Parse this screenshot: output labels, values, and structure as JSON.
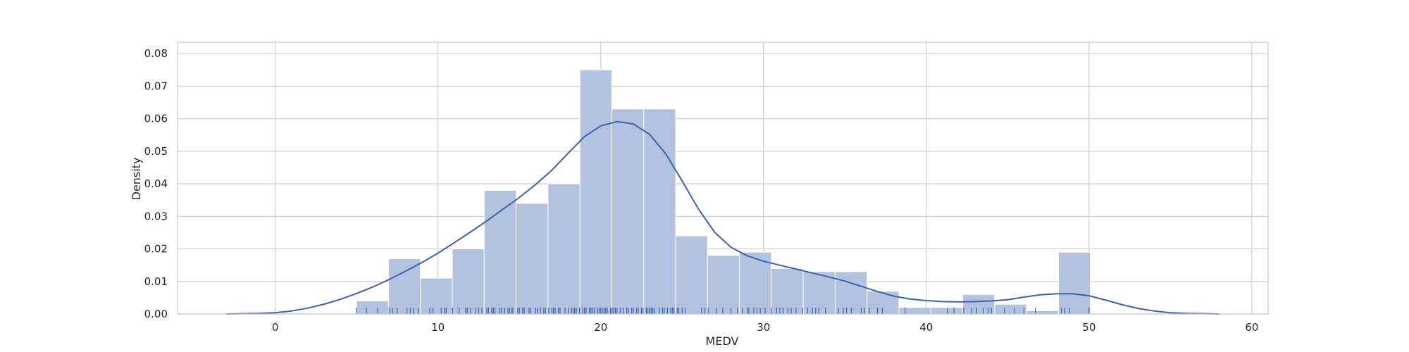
{
  "chart_data": {
    "type": "bar",
    "title": "",
    "xlabel": "MEDV",
    "ylabel": "Density",
    "xlim": [
      -6,
      61
    ],
    "ylim": [
      0,
      0.0835
    ],
    "xticks": [
      0,
      10,
      20,
      30,
      40,
      50,
      60
    ],
    "yticks": [
      0.0,
      0.01,
      0.02,
      0.03,
      0.04,
      0.05,
      0.06,
      0.07,
      0.08
    ],
    "ytick_labels": [
      "0.00",
      "0.01",
      "0.02",
      "0.03",
      "0.04",
      "0.05",
      "0.06",
      "0.07",
      "0.08"
    ],
    "grid": true,
    "colors": {
      "bar": "#b3c2de",
      "bar_edge": "#ffffff",
      "kde": "#3a63ad",
      "rug": "#3a63ad",
      "grid": "#cfcfcf",
      "frame": "#c8c8c8"
    },
    "histogram": {
      "bin_edges": [
        5,
        6.96,
        8.92,
        10.88,
        12.84,
        14.8,
        16.76,
        18.72,
        20.68,
        22.64,
        24.6,
        26.56,
        28.52,
        30.48,
        32.44,
        34.4,
        36.36,
        38.32,
        40.28,
        42.24,
        44.2,
        46.16,
        48.12,
        50.08
      ],
      "density": [
        0.004,
        0.017,
        0.011,
        0.02,
        0.038,
        0.034,
        0.04,
        0.075,
        0.063,
        0.063,
        0.024,
        0.018,
        0.019,
        0.014,
        0.013,
        0.013,
        0.007,
        0.002,
        0.002,
        0.006,
        0.003,
        0.001,
        0.019
      ]
    },
    "kde": {
      "x": [
        -3,
        -1,
        0,
        1,
        2,
        3,
        4,
        5,
        6,
        7,
        8,
        9,
        10,
        11,
        12,
        13,
        14,
        15,
        16,
        17,
        18,
        19,
        20,
        21,
        22,
        23,
        24,
        25,
        26,
        27,
        28,
        29,
        30,
        31,
        32,
        33,
        34,
        35,
        36,
        37,
        38,
        39,
        40,
        41,
        42,
        43,
        44,
        45,
        46,
        47,
        48,
        49,
        50,
        51,
        52,
        53,
        54,
        55,
        56,
        57,
        58
      ],
      "y": [
        0.0,
        0.0002,
        0.0004,
        0.0009,
        0.0018,
        0.003,
        0.0045,
        0.0063,
        0.0083,
        0.0106,
        0.0131,
        0.0158,
        0.0187,
        0.0219,
        0.0252,
        0.0286,
        0.0322,
        0.0358,
        0.0398,
        0.0442,
        0.0494,
        0.0545,
        0.0578,
        0.0591,
        0.0584,
        0.0552,
        0.0492,
        0.0409,
        0.0323,
        0.0251,
        0.0205,
        0.0179,
        0.0162,
        0.015,
        0.0138,
        0.0126,
        0.0114,
        0.0101,
        0.0085,
        0.0069,
        0.0055,
        0.0046,
        0.0041,
        0.0038,
        0.0037,
        0.0038,
        0.004,
        0.0044,
        0.0052,
        0.0059,
        0.0062,
        0.0062,
        0.0056,
        0.0043,
        0.0029,
        0.0017,
        0.0009,
        0.0004,
        0.0002,
        0.0001,
        0.0
      ]
    },
    "rug": [
      5,
      5.6,
      6.3,
      7,
      7.2,
      7.5,
      8.1,
      8.3,
      8.5,
      8.8,
      9.5,
      9.7,
      10.2,
      10.4,
      10.5,
      10.9,
      11.3,
      11.7,
      11.8,
      12,
      12.3,
      12.5,
      12.7,
      13,
      13.1,
      13.3,
      13.4,
      13.5,
      13.8,
      13.9,
      14.1,
      14.3,
      14.4,
      14.5,
      14.6,
      14.9,
      15,
      15.2,
      15.3,
      15.6,
      15.7,
      16,
      16.1,
      16.3,
      16.5,
      16.6,
      16.8,
      17,
      17.1,
      17.2,
      17.4,
      17.5,
      17.8,
      18,
      18.2,
      18.3,
      18.4,
      18.5,
      18.7,
      18.9,
      19,
      19.1,
      19.3,
      19.4,
      19.5,
      19.6,
      19.8,
      19.9,
      20,
      20.1,
      20.2,
      20.3,
      20.4,
      20.6,
      20.7,
      20.8,
      20.9,
      21,
      21.2,
      21.4,
      21.6,
      21.7,
      21.9,
      22,
      22.2,
      22.3,
      22.5,
      22.6,
      22.8,
      22.9,
      23,
      23.1,
      23.2,
      23.3,
      23.6,
      23.8,
      23.9,
      24.1,
      24.3,
      24.4,
      24.5,
      24.7,
      24.8,
      25,
      25.2,
      26.2,
      26.4,
      26.6,
      27.1,
      27.5,
      28,
      28.4,
      28.7,
      29,
      29.1,
      29.4,
      29.6,
      29.8,
      30.1,
      30.5,
      30.8,
      31,
      31.2,
      31.5,
      31.7,
      32,
      32.4,
      32.7,
      33,
      33.2,
      33.4,
      33.8,
      34.6,
      34.9,
      35.1,
      35.4,
      36,
      36.2,
      36.5,
      37,
      37.3,
      38.7,
      41.3,
      41.7,
      42.3,
      42.8,
      43.1,
      43.5,
      43.8,
      44,
      44.8,
      45.4,
      46,
      46.7,
      48.3,
      48.5,
      48.8,
      50
    ]
  }
}
